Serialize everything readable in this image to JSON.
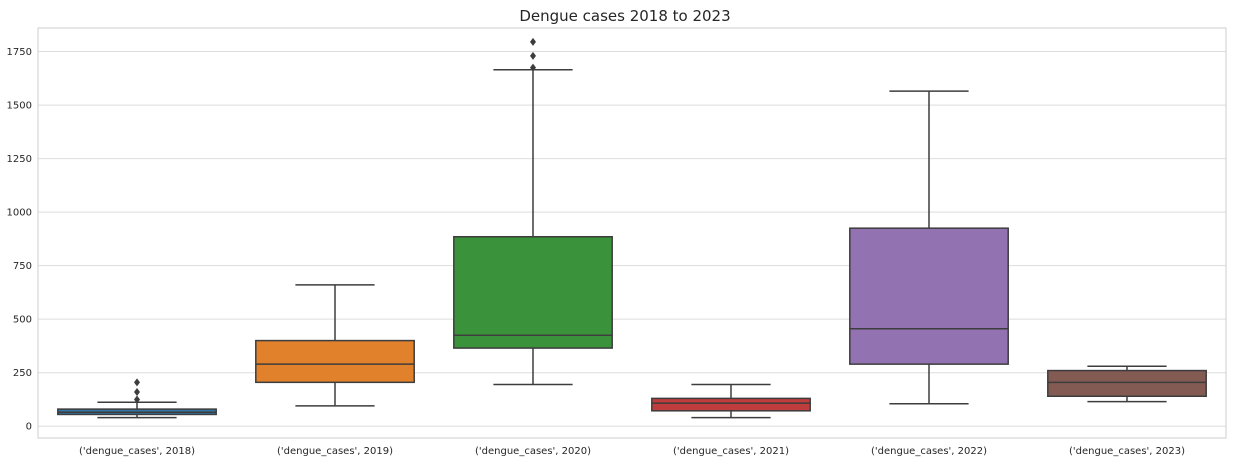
{
  "chart_data": {
    "type": "box",
    "title": "Dengue cases 2018 to 2023",
    "xlabel": "",
    "ylabel": "",
    "ylim": [
      -55,
      1860
    ],
    "yticks": [
      0,
      250,
      500,
      750,
      1000,
      1250,
      1500,
      1750
    ],
    "grid": true,
    "categories": [
      "('dengue_cases', 2018)",
      "('dengue_cases', 2019)",
      "('dengue_cases', 2020)",
      "('dengue_cases', 2021)",
      "('dengue_cases', 2022)",
      "('dengue_cases', 2023)"
    ],
    "boxes": [
      {
        "whisker_low": 40,
        "q1": 55,
        "median": 65,
        "q3": 80,
        "whisker_high": 112,
        "outliers": [
          125,
          160,
          205
        ],
        "color": "#3274a1"
      },
      {
        "whisker_low": 95,
        "q1": 205,
        "median": 290,
        "q3": 400,
        "whisker_high": 660,
        "outliers": [],
        "color": "#e1812c"
      },
      {
        "whisker_low": 195,
        "q1": 365,
        "median": 425,
        "q3": 885,
        "whisker_high": 1665,
        "outliers": [
          1675,
          1730,
          1795
        ],
        "color": "#3a923a"
      },
      {
        "whisker_low": 40,
        "q1": 72,
        "median": 108,
        "q3": 130,
        "whisker_high": 195,
        "outliers": [],
        "color": "#c03d3e"
      },
      {
        "whisker_low": 105,
        "q1": 290,
        "median": 455,
        "q3": 925,
        "whisker_high": 1565,
        "outliers": [],
        "color": "#9372b2"
      },
      {
        "whisker_low": 115,
        "q1": 140,
        "median": 205,
        "q3": 260,
        "whisker_high": 280,
        "outliers": [],
        "color": "#845b53"
      }
    ],
    "line_color": "#3d3d3d",
    "grid_color": "#dddddd",
    "frame_color": "#cccccc"
  }
}
